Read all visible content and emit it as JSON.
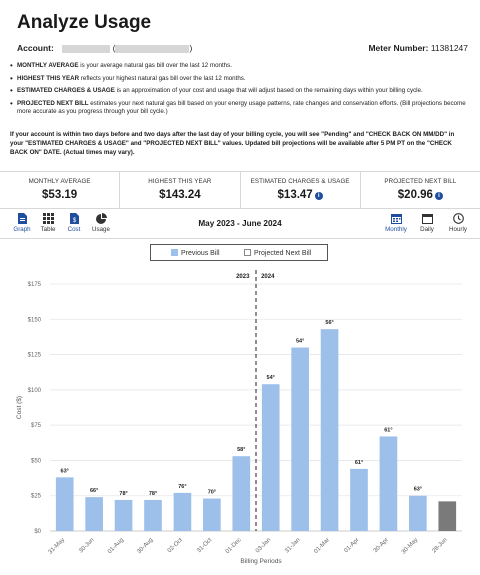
{
  "page": {
    "title": "Analyze Usage"
  },
  "account": {
    "label": "Account:",
    "paren_open": "(",
    "paren_close": ")",
    "meter_label": "Meter Number:",
    "meter_number": "11381247"
  },
  "bullets": [
    {
      "term": "MONTHLY AVERAGE",
      "text": " is your average natural gas bill over the last 12 months."
    },
    {
      "term": "HIGHEST THIS YEAR",
      "text": " reflects your highest natural gas bill over the last 12 months."
    },
    {
      "term": "ESTIMATED CHARGES & USAGE",
      "text": " is an approximation of your cost and usage that will adjust based on the remaining days within your billing cycle."
    },
    {
      "term": "PROJECTED NEXT BILL",
      "text": " estimates your next natural gas bill based on your energy usage patterns, rate changes and conservation efforts. (Bill projections become more accurate as you progress through your bill cycle.)"
    }
  ],
  "notice": "If your account is within two days before and two days after the last day of your billing cycle, you will see \"Pending\" and \"CHECK BACK ON MM/DD\" in your \"ESTIMATED CHARGES & USAGE\" and \"PROJECTED NEXT BILL\" values. Updated bill projections will be available after 5 PM PT on the \"CHECK BACK ON\" DATE. (Actual times may vary).",
  "stats": {
    "monthly_average": {
      "label": "MONTHLY AVERAGE",
      "value": "$53.19"
    },
    "highest": {
      "label": "HIGHEST THIS YEAR",
      "value": "$143.24"
    },
    "estimated": {
      "label": "ESTIMATED CHARGES & USAGE",
      "value": "$13.47"
    },
    "projected": {
      "label": "PROJECTED NEXT BILL",
      "value": "$20.96"
    },
    "info_glyph": "i"
  },
  "toolbar": {
    "graph": "Graph",
    "table": "Table",
    "cost": "Cost",
    "usage": "Usage",
    "period": "May 2023 - June 2024",
    "monthly": "Monthly",
    "daily": "Daily",
    "hourly": "Hourly"
  },
  "colors": {
    "accent": "#1f4e9e",
    "bar": "#9dc0ea",
    "projected_bar": "#7a7a7a",
    "grid": "#e6e6e6"
  },
  "legend": {
    "previous": "Previous Bill",
    "projected": "Projected Next Bill"
  },
  "chart_data": {
    "type": "bar",
    "ylabel": "Cost ($)",
    "xlabel": "Billing Periods",
    "ylim": [
      0,
      175
    ],
    "yticks": [
      "$0",
      "$25",
      "$50",
      "$75",
      "$100",
      "$125",
      "$150",
      "$175"
    ],
    "year_labels": [
      "2023",
      "2024"
    ],
    "categories": [
      "31-May",
      "30-Jun",
      "01-Aug",
      "30-Aug",
      "02-Oct",
      "31-Oct",
      "01-Dec",
      "03-Jan",
      "31-Jan",
      "01-Mar",
      "01-Apr",
      "30-Apr",
      "30-May",
      "28-Jun"
    ],
    "series": [
      {
        "name": "Previous Bill",
        "values": [
          38,
          24,
          22,
          22,
          27,
          23,
          53,
          104,
          130,
          143,
          44,
          67,
          25,
          null
        ]
      },
      {
        "name": "Projected Next Bill",
        "values": [
          null,
          null,
          null,
          null,
          null,
          null,
          null,
          null,
          null,
          null,
          null,
          null,
          null,
          21
        ]
      }
    ],
    "temps": [
      "63°",
      "66°",
      "78°",
      "78°",
      "76°",
      "70°",
      "58°",
      "54°",
      "54°",
      "56°",
      "61°",
      "61°",
      "63°",
      ""
    ],
    "grid": true
  }
}
